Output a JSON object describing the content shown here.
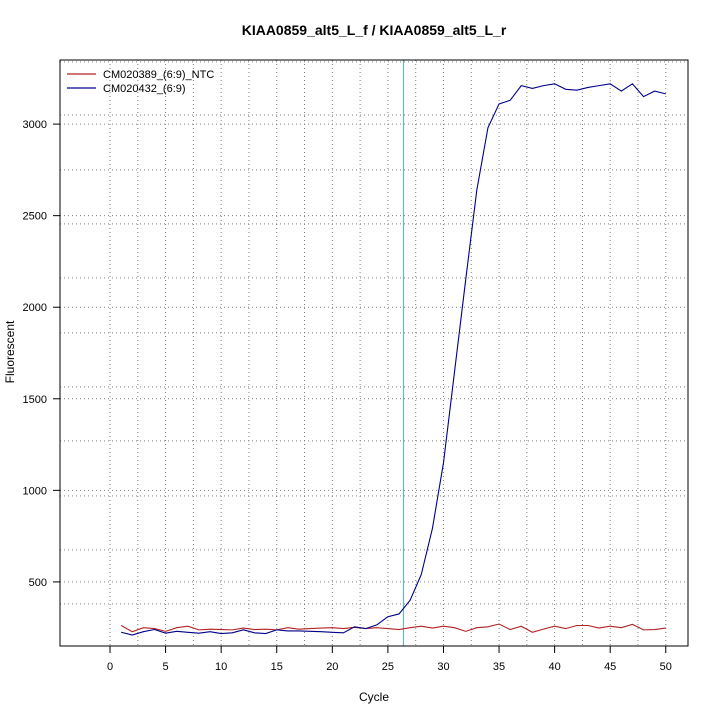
{
  "chart_data": {
    "type": "line",
    "title": "KIAA0859_alt5_L_f / KIAA0859_alt5_L_r",
    "xlabel": "Cycle",
    "ylabel": "Fluorescent",
    "xlim": [
      -4.5,
      52
    ],
    "ylim": [
      150,
      3350
    ],
    "xticks": [
      0,
      5,
      10,
      15,
      20,
      25,
      30,
      35,
      40,
      45,
      50
    ],
    "yticks": [
      500,
      1000,
      1500,
      2000,
      2500,
      3000
    ],
    "x_gridlines": [
      2.5,
      7.5,
      12.5,
      17.5,
      22.5,
      27.5,
      32.5,
      37.5,
      42.5,
      47.5
    ],
    "y_gridlines": [
      380,
      675,
      970,
      1270,
      1565,
      1860,
      2160,
      2455,
      2750,
      3050,
      3340
    ],
    "threshold_cycle": 26.4,
    "threshold_color": "#00e5e5",
    "legend_position": "top-left",
    "x": [
      1,
      2,
      3,
      4,
      5,
      6,
      7,
      8,
      9,
      10,
      11,
      12,
      13,
      14,
      15,
      16,
      17,
      18,
      19,
      20,
      21,
      22,
      23,
      24,
      25,
      26,
      27,
      28,
      29,
      30,
      31,
      32,
      33,
      34,
      35,
      36,
      37,
      38,
      39,
      40,
      41,
      42,
      43,
      44,
      45,
      46,
      47,
      48,
      49,
      50
    ],
    "series": [
      {
        "name": "CM020389_(6:9)_NTC",
        "color": "#b22222",
        "values": [
          262,
          228,
          250,
          245,
          230,
          250,
          258,
          238,
          242,
          240,
          238,
          248,
          240,
          242,
          238,
          250,
          242,
          245,
          248,
          250,
          245,
          252,
          245,
          250,
          245,
          240,
          250,
          258,
          248,
          258,
          250,
          230,
          250,
          255,
          270,
          240,
          258,
          225,
          242,
          258,
          245,
          262,
          262,
          248,
          258,
          250,
          268,
          238,
          240,
          248
        ]
      },
      {
        "name": "CM020432_(6:9)",
        "color": "#00008b",
        "values": [
          225,
          210,
          228,
          240,
          220,
          230,
          225,
          220,
          228,
          218,
          222,
          238,
          222,
          218,
          238,
          232,
          232,
          230,
          228,
          225,
          222,
          255,
          245,
          265,
          310,
          325,
          400,
          540,
          790,
          1150,
          1650,
          2150,
          2640,
          2980,
          3110,
          3130,
          3210,
          3195,
          3210,
          3220,
          3190,
          3185,
          3200,
          3210,
          3220,
          3180,
          3220,
          3150,
          3180,
          3165
        ]
      }
    ]
  }
}
